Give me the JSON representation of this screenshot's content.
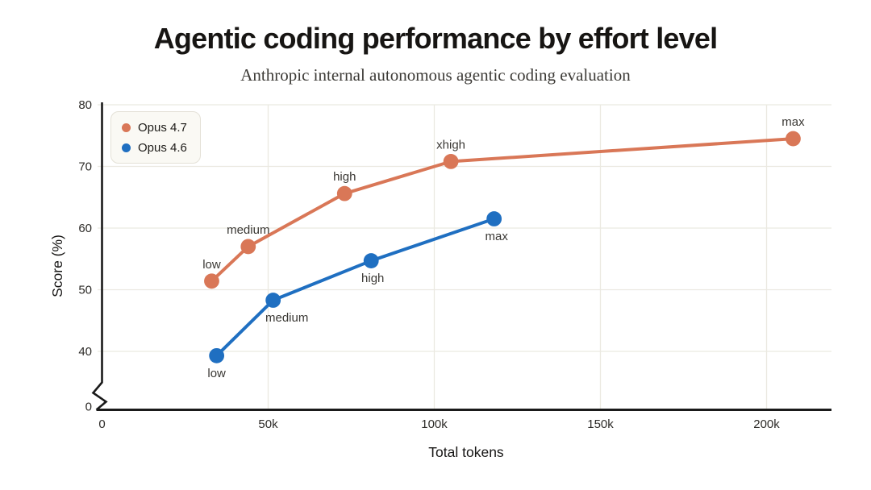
{
  "chart_data": {
    "type": "line",
    "title": "Agentic coding performance by effort level",
    "subtitle": "Anthropic internal autonomous agentic coding evaluation",
    "x_axis": {
      "label": "Total tokens",
      "tick_values": [
        0,
        50000,
        100000,
        150000,
        200000
      ],
      "tick_labels": [
        "0",
        "50k",
        "100k",
        "150k",
        "200k"
      ],
      "range": [
        0,
        220000
      ]
    },
    "y_axis": {
      "label": "Score (%)",
      "tick_values": [
        0,
        40,
        50,
        60,
        70,
        80
      ],
      "tick_labels": [
        "0",
        "40",
        "50",
        "60",
        "70",
        "80"
      ],
      "display_range": [
        40,
        80
      ],
      "axis_break_between": [
        0,
        40
      ],
      "grid": true
    },
    "legend": {
      "position": "top-left",
      "background": "#faf9f4",
      "border_color": "#e4e1d7"
    },
    "series": [
      {
        "name": "Opus 4.7",
        "color": "#D97757",
        "points": [
          {
            "tokens": 33000,
            "score": 51.4,
            "label": "low",
            "label_pos": "above"
          },
          {
            "tokens": 44000,
            "score": 57.0,
            "label": "medium",
            "label_pos": "above"
          },
          {
            "tokens": 73000,
            "score": 65.6,
            "label": "high",
            "label_pos": "above"
          },
          {
            "tokens": 105000,
            "score": 70.8,
            "label": "xhigh",
            "label_pos": "above"
          },
          {
            "tokens": 208000,
            "score": 74.5,
            "label": "max",
            "label_pos": "above"
          }
        ]
      },
      {
        "name": "Opus 4.6",
        "color": "#1F6FC1",
        "points": [
          {
            "tokens": 34500,
            "score": 39.3,
            "label": "low",
            "label_pos": "below"
          },
          {
            "tokens": 51500,
            "score": 48.3,
            "label": "medium",
            "label_pos": "below",
            "label_dx": 17
          },
          {
            "tokens": 81000,
            "score": 54.7,
            "label": "high",
            "label_pos": "below",
            "label_dx": 2
          },
          {
            "tokens": 118000,
            "score": 61.5,
            "label": "max",
            "label_pos": "below",
            "label_dx": 3
          }
        ]
      }
    ],
    "style": {
      "grid_color": "#ebe9e1",
      "axis_color": "#1a1a1a",
      "tick_label_color": "#2e2c29",
      "point_label_color": "#3a3834",
      "axis_title_color": "#161514"
    }
  }
}
